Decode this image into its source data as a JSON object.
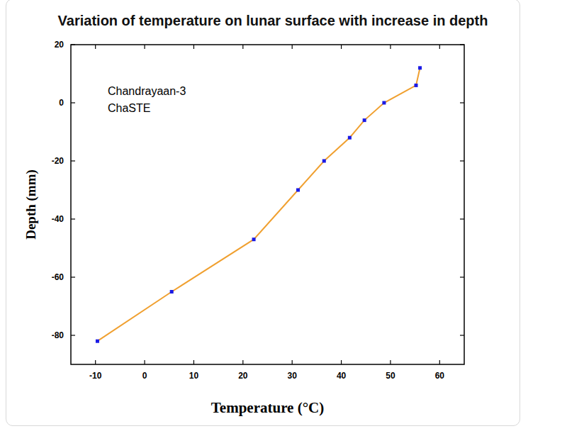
{
  "chart_data": {
    "type": "line",
    "title": "Variation of temperature on lunar surface with increase in depth",
    "annotations": [
      "Chandrayaan-3",
      "ChaSTE"
    ],
    "x_label": "Temperature (°C)",
    "y_label": "Depth (mm)",
    "x": [
      56.0,
      55.2,
      48.7,
      44.7,
      41.7,
      36.5,
      31.2,
      22.2,
      5.5,
      -9.6
    ],
    "values": [
      12,
      6,
      0,
      -6,
      -12,
      -20,
      -30,
      -47,
      -65,
      -82
    ],
    "color": "#f0a030",
    "marker": "square",
    "xlim": [
      -15,
      65
    ],
    "xticks": [
      -10,
      0,
      10,
      20,
      30,
      40,
      50,
      60
    ],
    "ylim": [
      -90,
      20
    ],
    "yticks": [
      20,
      0,
      -20,
      -40,
      -60,
      -80
    ],
    "grid": false
  }
}
